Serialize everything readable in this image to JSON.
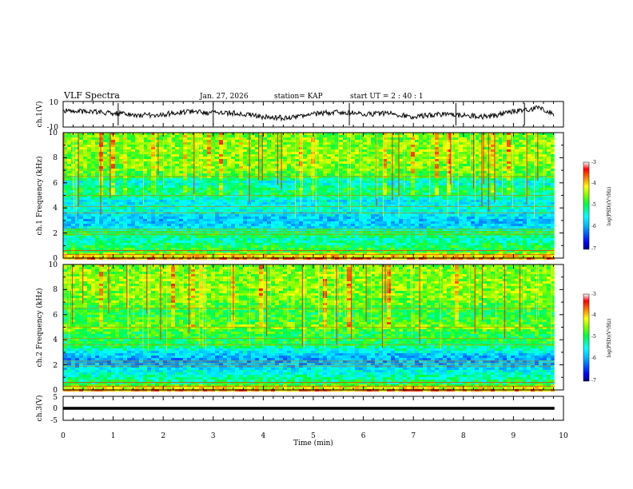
{
  "header": {
    "title": "VLF Spectra",
    "date": "Jan. 27, 2026",
    "station": "station= KAP",
    "start": "start UT =  2 : 40 : 1"
  },
  "colors": {
    "background": "#ffffff",
    "axis": "#000000",
    "trace": "#000000",
    "colormap": [
      "#000080",
      "#0000ff",
      "#00bfff",
      "#00ffff",
      "#00ff40",
      "#80ff00",
      "#ffff00",
      "#ff8000",
      "#ff0000",
      "#ffffff"
    ]
  },
  "chart_data": [
    {
      "type": "line",
      "name": "ch1-waveform",
      "ylabel": "ch.1(V)",
      "ylim": [
        -10,
        10
      ],
      "yticks": [
        "10",
        "-10"
      ],
      "xlim": [
        0,
        10
      ],
      "data_end_min": 9.82,
      "series": [
        {
          "name": "ch.1",
          "x": [
            0,
            0.5,
            1,
            1.5,
            2,
            2.5,
            3,
            3.5,
            4,
            4.5,
            5,
            5.5,
            6,
            6.5,
            7,
            7.5,
            8,
            8.5,
            9,
            9.5,
            9.82
          ],
          "values": [
            3,
            2,
            1,
            -1,
            0,
            2,
            1,
            1,
            -2,
            -3,
            0,
            2,
            0,
            1,
            -2,
            0,
            -1,
            -2,
            2,
            5,
            0
          ]
        }
      ]
    },
    {
      "type": "heatmap",
      "name": "ch1-spectrogram",
      "ylabel": "ch.1 Frequency (kHz)",
      "ylim": [
        0,
        10
      ],
      "yticks": [
        "0",
        "2",
        "4",
        "6",
        "8",
        "10"
      ],
      "xlim": [
        0,
        10
      ],
      "data_end_min": 9.82,
      "zlim": [
        -7,
        -3
      ],
      "colorbar_label": "log(PSD)(V²/Hz)",
      "colorbar_ticks": [
        "-3",
        "-4",
        "-5",
        "-6",
        "-7"
      ],
      "freq_profile_khz": [
        0,
        0.5,
        1,
        1.5,
        2,
        2.5,
        3,
        3.5,
        4,
        4.5,
        5,
        5.5,
        6,
        6.5,
        7,
        8,
        9,
        10
      ],
      "freq_profile_level": [
        -3.8,
        -4.8,
        -5.0,
        -5.3,
        -4.9,
        -5.7,
        -5.8,
        -5.6,
        -5.4,
        -5.6,
        -5.1,
        -5.0,
        -5.5,
        -4.8,
        -4.6,
        -4.5,
        -4.5,
        -4.6
      ]
    },
    {
      "type": "heatmap",
      "name": "ch2-spectrogram",
      "ylabel": "ch.2 Frequency (kHz)",
      "ylim": [
        0,
        10
      ],
      "yticks": [
        "0",
        "2",
        "4",
        "6",
        "8",
        "10"
      ],
      "xlim": [
        0,
        10
      ],
      "data_end_min": 9.82,
      "zlim": [
        -7,
        -3
      ],
      "colorbar_label": "log(PSD)(V²/Hz)",
      "colorbar_ticks": [
        "-3",
        "-4",
        "-5",
        "-6",
        "-7"
      ],
      "freq_profile_khz": [
        0,
        0.5,
        1,
        1.5,
        2,
        2.5,
        3,
        3.5,
        4,
        4.5,
        5,
        5.5,
        6,
        6.5,
        7,
        8,
        9,
        10
      ],
      "freq_profile_level": [
        -3.8,
        -5.0,
        -5.2,
        -5.5,
        -5.9,
        -6.0,
        -5.6,
        -5.0,
        -4.9,
        -4.9,
        -4.5,
        -4.8,
        -4.9,
        -4.8,
        -4.6,
        -4.5,
        -4.5,
        -4.6
      ]
    },
    {
      "type": "line",
      "name": "ch3-waveform",
      "ylabel": "ch.3(V)",
      "ylim": [
        -5,
        5
      ],
      "yticks": [
        "5",
        "0",
        "-5"
      ],
      "xlim": [
        0,
        10
      ],
      "data_end_min": 9.82,
      "series": [
        {
          "name": "ch.3",
          "x": [
            0,
            9.82
          ],
          "values": [
            0,
            0
          ],
          "band": [
            -0.6,
            0.6
          ]
        }
      ]
    }
  ],
  "xaxis": {
    "label": "Time (min)",
    "ticks": [
      "0",
      "1",
      "2",
      "3",
      "4",
      "5",
      "6",
      "7",
      "8",
      "9",
      "10"
    ]
  }
}
